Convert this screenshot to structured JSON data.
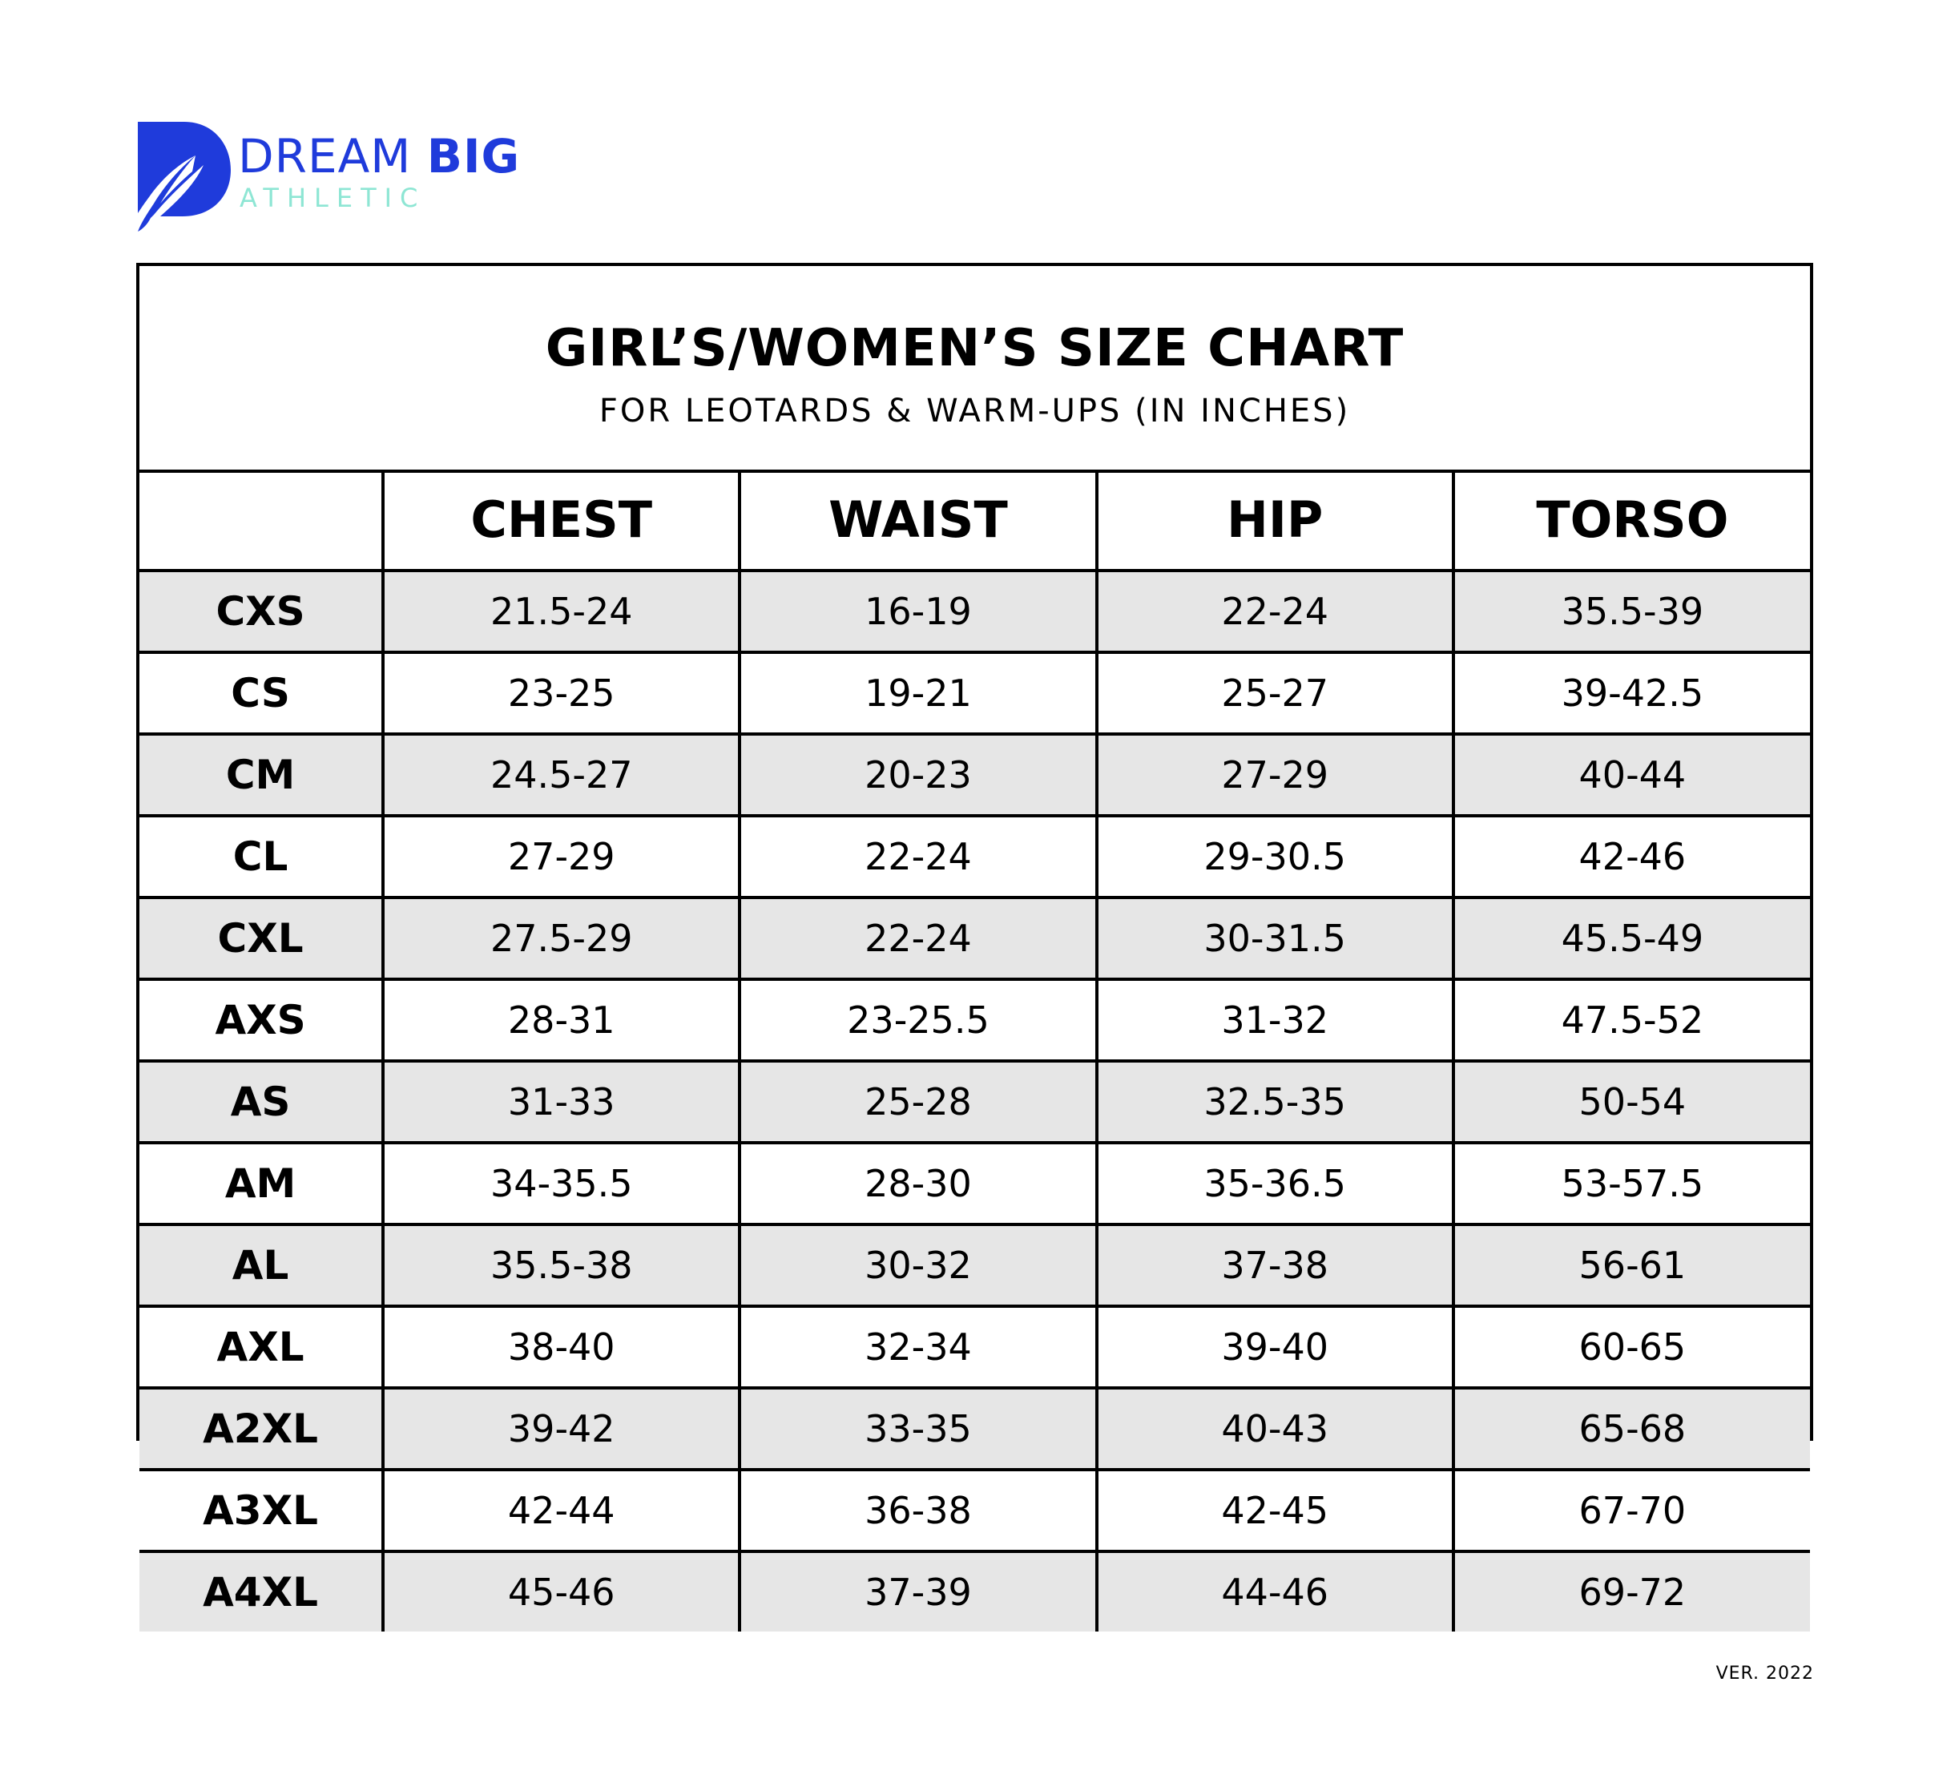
{
  "brand": {
    "name_light": "DREAM",
    "name_bold": "BIG",
    "tagline": "ATHLETIC",
    "primary_color": "#1f3bdb",
    "accent_color": "#8ee6d4"
  },
  "chart": {
    "title": "GIRL’S/WOMEN’S SIZE CHART",
    "subtitle": "FOR LEOTARDS & WARM-UPS (IN INCHES)",
    "columns": [
      "",
      "CHEST",
      "WAIST",
      "HIP",
      "TORSO"
    ],
    "rows": [
      [
        "CXS",
        "21.5-24",
        "16-19",
        "22-24",
        "35.5-39"
      ],
      [
        "CS",
        "23-25",
        "19-21",
        "25-27",
        "39-42.5"
      ],
      [
        "CM",
        "24.5-27",
        "20-23",
        "27-29",
        "40-44"
      ],
      [
        "CL",
        "27-29",
        "22-24",
        "29-30.5",
        "42-46"
      ],
      [
        "CXL",
        "27.5-29",
        "22-24",
        "30-31.5",
        "45.5-49"
      ],
      [
        "AXS",
        "28-31",
        "23-25.5",
        "31-32",
        "47.5-52"
      ],
      [
        "AS",
        "31-33",
        "25-28",
        "32.5-35",
        "50-54"
      ],
      [
        "AM",
        "34-35.5",
        "28-30",
        "35-36.5",
        "53-57.5"
      ],
      [
        "AL",
        "35.5-38",
        "30-32",
        "37-38",
        "56-61"
      ],
      [
        "AXL",
        "38-40",
        "32-34",
        "39-40",
        "60-65"
      ],
      [
        "A2XL",
        "39-42",
        "33-35",
        "40-43",
        "65-68"
      ],
      [
        "A3XL",
        "42-44",
        "36-38",
        "42-45",
        "67-70"
      ],
      [
        "A4XL",
        "45-46",
        "37-39",
        "44-46",
        "69-72"
      ]
    ],
    "stripe_color": "#e6e6e6"
  },
  "footer": {
    "version": "VER. 2022"
  }
}
